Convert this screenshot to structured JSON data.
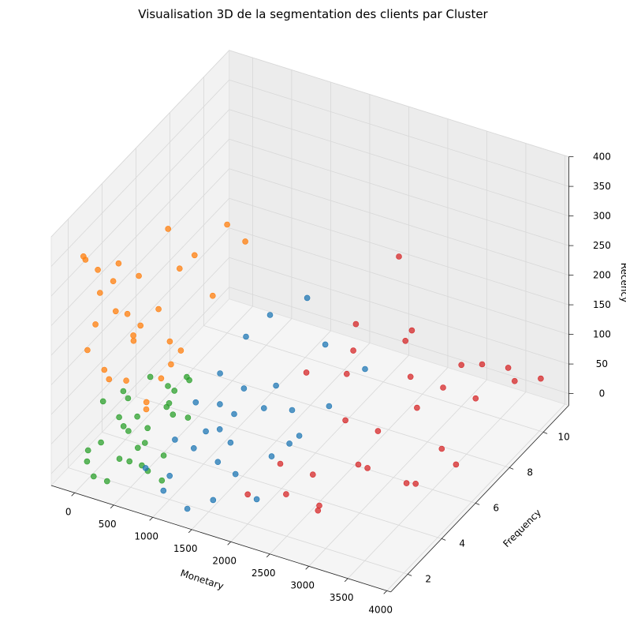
{
  "chart_data": {
    "type": "scatter",
    "projection": "3d",
    "title": "Visualisation 3D de la segmentation des clients par Cluster",
    "xlabel": "Monetary",
    "ylabel": "Frequency",
    "zlabel": "Recency",
    "xlim": [
      -300,
      4050
    ],
    "ylim": [
      1,
      11.5
    ],
    "zlim": [
      -20,
      400
    ],
    "xticks": [
      0,
      500,
      1000,
      1500,
      2000,
      2500,
      3000,
      3500,
      4000
    ],
    "yticks": [
      2,
      4,
      6,
      8,
      10
    ],
    "zticks": [
      0,
      50,
      100,
      150,
      200,
      250,
      300,
      350,
      400
    ],
    "grid": true,
    "legend": "none",
    "series": [
      {
        "color": "#2ca02c",
        "points": [
          [
            50,
            1.5,
            20
          ],
          [
            120,
            2,
            40
          ],
          [
            200,
            1.2,
            10
          ],
          [
            300,
            2.5,
            60
          ],
          [
            400,
            1.8,
            30
          ],
          [
            500,
            3,
            50
          ],
          [
            600,
            2.2,
            15
          ],
          [
            700,
            1.5,
            70
          ],
          [
            80,
            3.5,
            80
          ],
          [
            150,
            4,
            25
          ],
          [
            250,
            3,
            90
          ],
          [
            350,
            1.3,
            5
          ],
          [
            450,
            4.5,
            45
          ],
          [
            550,
            1.7,
            35
          ],
          [
            650,
            3.8,
            55
          ],
          [
            750,
            2.8,
            20
          ],
          [
            850,
            1.4,
            40
          ],
          [
            100,
            5,
            60
          ],
          [
            300,
            5.5,
            30
          ],
          [
            500,
            4.2,
            85
          ],
          [
            200,
            2.7,
            65
          ],
          [
            400,
            3.3,
            12
          ],
          [
            600,
            5,
            75
          ],
          [
            800,
            4,
            50
          ],
          [
            900,
            2,
            8
          ],
          [
            60,
            2.4,
            95
          ],
          [
            350,
            6,
            40
          ],
          [
            700,
            3.2,
            88
          ],
          [
            150,
            1.1,
            55
          ],
          [
            450,
            2.1,
            70
          ]
        ]
      },
      {
        "color": "#ff7f0e",
        "points": [
          [
            30,
            1.5,
            360
          ],
          [
            80,
            2,
            330
          ],
          [
            150,
            1.8,
            300
          ],
          [
            60,
            3,
            280
          ],
          [
            200,
            2.5,
            250
          ],
          [
            120,
            1.2,
            220
          ],
          [
            300,
            3.5,
            200
          ],
          [
            250,
            1.6,
            180
          ],
          [
            100,
            4,
            160
          ],
          [
            400,
            2.2,
            150
          ],
          [
            50,
            2.8,
            120
          ],
          [
            350,
            5,
            130
          ],
          [
            500,
            3.8,
            110
          ],
          [
            180,
            1.4,
            260
          ],
          [
            600,
            4.5,
            140
          ],
          [
            700,
            2,
            120
          ],
          [
            220,
            5.5,
            300
          ],
          [
            450,
            6,
            250
          ],
          [
            800,
            3,
            170
          ],
          [
            150,
            6.5,
            200
          ],
          [
            900,
            5,
            230
          ],
          [
            280,
            2.3,
            340
          ],
          [
            380,
            4.2,
            210
          ],
          [
            90,
            1.1,
            380
          ],
          [
            550,
            2.7,
            105
          ],
          [
            1100,
            6,
            300
          ],
          [
            650,
            7,
            280
          ],
          [
            320,
            3,
            190
          ],
          [
            40,
            4.6,
            240
          ],
          [
            480,
            1.9,
            275
          ]
        ]
      },
      {
        "color": "#1f77b4",
        "points": [
          [
            800,
            1.5,
            40
          ],
          [
            1000,
            2,
            20
          ],
          [
            1200,
            2.5,
            60
          ],
          [
            1400,
            3,
            30
          ],
          [
            1600,
            1.8,
            10
          ],
          [
            1800,
            2.2,
            50
          ],
          [
            900,
            4,
            80
          ],
          [
            1100,
            4.5,
            70
          ],
          [
            1300,
            5,
            90
          ],
          [
            1500,
            3.5,
            100
          ],
          [
            1700,
            6,
            40
          ],
          [
            1900,
            5.5,
            20
          ],
          [
            2100,
            4,
            60
          ],
          [
            1000,
            6.5,
            120
          ],
          [
            1200,
            7,
            150
          ],
          [
            1400,
            1.2,
            5
          ],
          [
            1600,
            4.8,
            75
          ],
          [
            1800,
            7.5,
            110
          ],
          [
            2000,
            6.8,
            35
          ],
          [
            850,
            3,
            45
          ],
          [
            1050,
            1.4,
            15
          ],
          [
            1250,
            3.8,
            55
          ],
          [
            1450,
            6.2,
            65
          ],
          [
            1650,
            2.6,
            85
          ],
          [
            1850,
            4.1,
            25
          ],
          [
            2200,
            8,
            70
          ],
          [
            1350,
            8.5,
            140
          ],
          [
            950,
            5.2,
            95
          ],
          [
            1550,
            1.6,
            130
          ],
          [
            2050,
            2.3,
            15
          ]
        ]
      },
      {
        "color": "#d62728",
        "points": [
          [
            2000,
            2,
            30
          ],
          [
            2200,
            3,
            60
          ],
          [
            2400,
            4,
            20
          ],
          [
            2600,
            5,
            90
          ],
          [
            2800,
            6,
            50
          ],
          [
            3000,
            7,
            120
          ],
          [
            3200,
            8,
            80
          ],
          [
            3400,
            9,
            40
          ],
          [
            3600,
            10,
            70
          ],
          [
            3800,
            11,
            30
          ],
          [
            2100,
            5,
            150
          ],
          [
            2300,
            7,
            180
          ],
          [
            2500,
            9,
            100
          ],
          [
            2700,
            3,
            10
          ],
          [
            2900,
            2,
            40
          ],
          [
            3100,
            4,
            60
          ],
          [
            3300,
            6,
            110
          ],
          [
            3500,
            5,
            20
          ],
          [
            3700,
            8,
            140
          ],
          [
            3900,
            9,
            90
          ],
          [
            2200,
            10,
            200
          ],
          [
            2400,
            6,
            130
          ],
          [
            2600,
            1.5,
            70
          ],
          [
            2800,
            8,
            160
          ],
          [
            3000,
            10,
            50
          ],
          [
            3200,
            3,
            100
          ],
          [
            3400,
            7,
            15
          ],
          [
            3600,
            4,
            55
          ],
          [
            2050,
            8,
            95
          ],
          [
            3800,
            6,
            35
          ]
        ]
      }
    ]
  }
}
